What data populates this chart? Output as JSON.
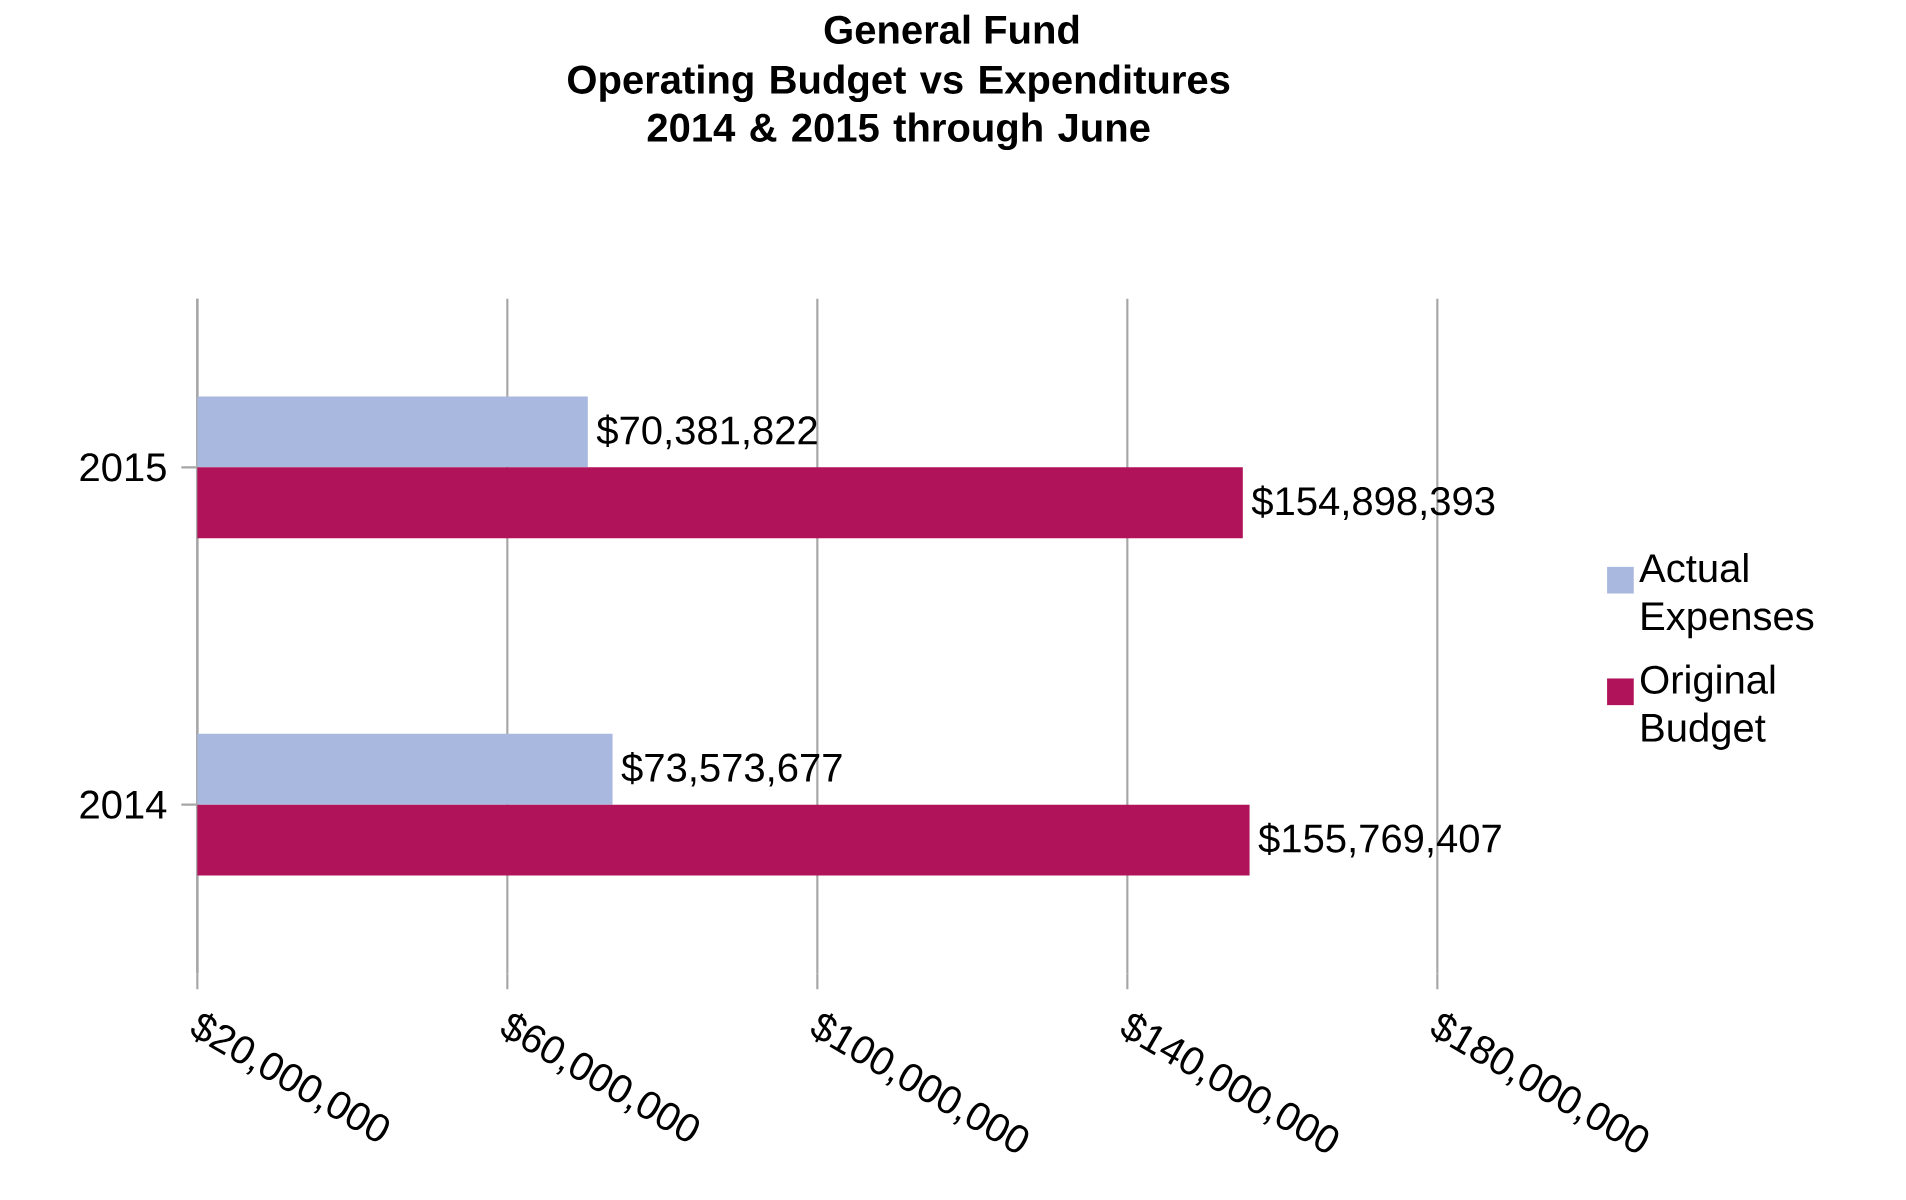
{
  "chart_data": {
    "type": "bar",
    "orientation": "horizontal",
    "title": "General Fund",
    "subtitle": "Operating Budget vs Expenditures 2014 & 2015 through June",
    "categories": [
      "2015",
      "2014"
    ],
    "series": [
      {
        "name": "Actual Expenses",
        "color": "#a9b8de",
        "values": [
          70381822,
          73573677
        ],
        "value_labels": [
          "$70,381,822",
          "$73,573,677"
        ]
      },
      {
        "name": "Original Budget",
        "color": "#b0135a",
        "values": [
          154898393,
          155769407
        ],
        "value_labels": [
          "$154,898,393",
          "$155,769,407"
        ]
      }
    ],
    "xlim": [
      20000000,
      180000000
    ],
    "xticks": [
      {
        "value": 20000000,
        "label": "$20,000,000"
      },
      {
        "value": 60000000,
        "label": "$60,000,000"
      },
      {
        "value": 100000000,
        "label": "$100,000,000"
      },
      {
        "value": 140000000,
        "label": "$140,000,000"
      },
      {
        "value": 180000000,
        "label": "$180,000,000"
      }
    ],
    "grid": "x",
    "legend": "right"
  }
}
